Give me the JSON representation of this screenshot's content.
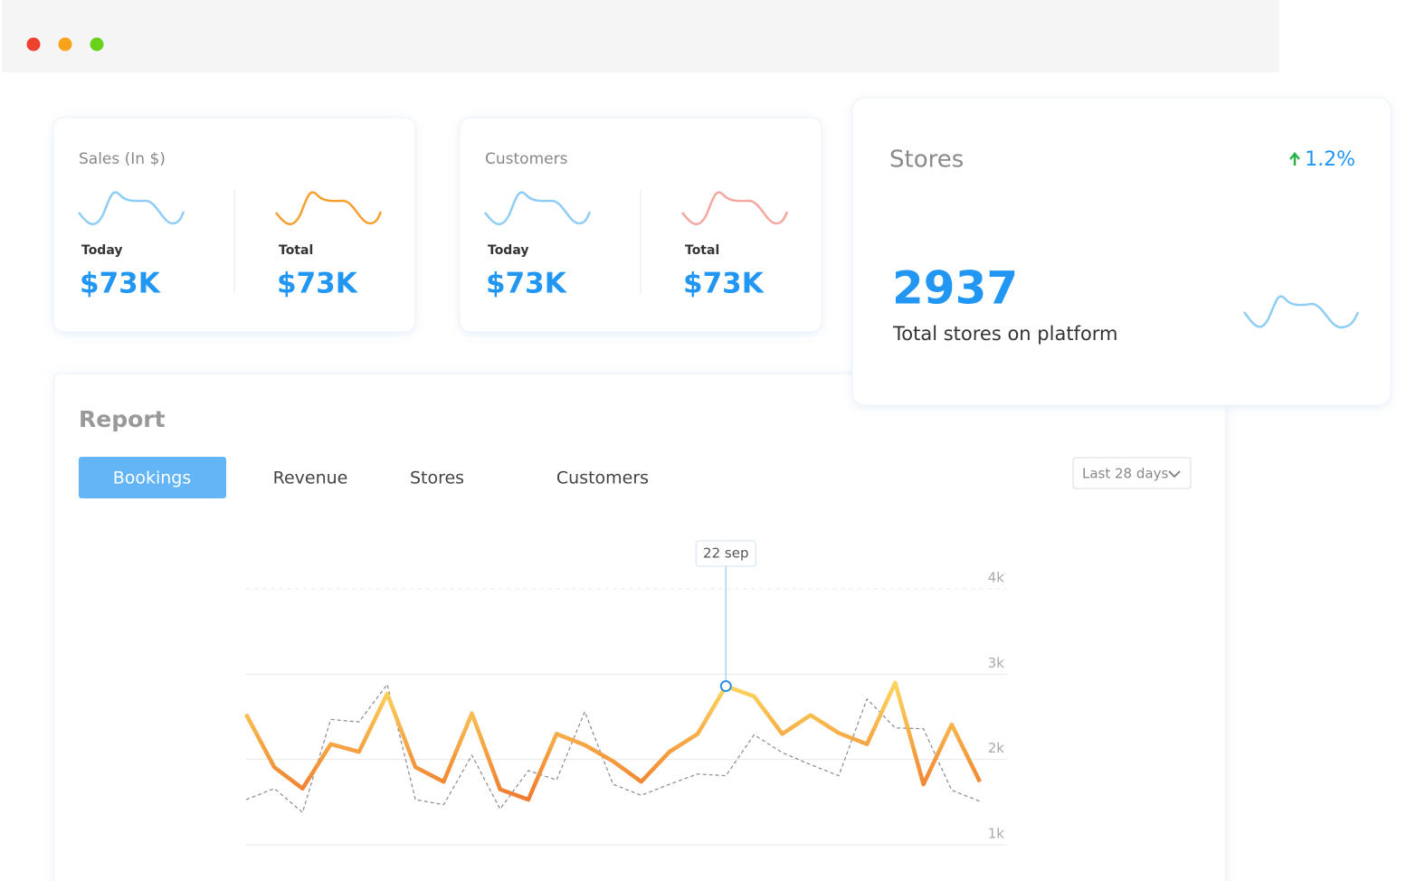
{
  "cards": [
    {
      "title": "Sales (In $)",
      "items": [
        {
          "label": "Today",
          "value": "$73K"
        },
        {
          "label": "Total",
          "value": "$73K"
        }
      ]
    },
    {
      "title": "Customers",
      "items": [
        {
          "label": "Today",
          "value": "$73K"
        },
        {
          "label": "Total",
          "value": "$73K"
        }
      ]
    }
  ],
  "stores": {
    "title": "Stores",
    "change": "1.2%",
    "value": 2937,
    "caption": "Total stores on platform"
  },
  "report": {
    "title": "Report",
    "tabs": [
      "Bookings",
      "Revenue",
      "Stores",
      "Customers"
    ],
    "active_tab": 0,
    "range": "Last 28 days"
  },
  "chart_data": {
    "type": "line",
    "categories": [
      null,
      null,
      null,
      null,
      null,
      null,
      null,
      null,
      null,
      null,
      null,
      null,
      null,
      null,
      null,
      null,
      null,
      "22 sep",
      null,
      null,
      null,
      null,
      null,
      null,
      null,
      null,
      null
    ],
    "series": [
      {
        "color": "#f07a2e",
        "dashed": false,
        "values": [
          2530,
          1910,
          1660,
          2180,
          2090,
          2770,
          1910,
          1740,
          2540,
          1650,
          1530,
          2300,
          2170,
          1980,
          1740,
          2090,
          2300,
          2860,
          2740,
          2300,
          2520,
          2310,
          2180,
          2900,
          1710,
          2410,
          1740
        ]
      },
      {
        "color": "#8a8a8a",
        "dashed": true,
        "values": [
          1530,
          1660,
          1380,
          2470,
          2440,
          2880,
          1530,
          1470,
          2050,
          1420,
          1870,
          1760,
          2560,
          1710,
          1580,
          1710,
          1830,
          1810,
          2290,
          2080,
          1940,
          1810,
          2710,
          2370,
          2360,
          1640,
          1510
        ]
      }
    ],
    "ylim": [
      1000,
      4000
    ],
    "yticks": [
      {
        "value": 1000,
        "label": "1k"
      },
      {
        "value": 2000,
        "label": "2k"
      },
      {
        "value": 3000,
        "label": "3k"
      },
      {
        "value": 4000,
        "label": "4k"
      }
    ],
    "grid": true
  }
}
